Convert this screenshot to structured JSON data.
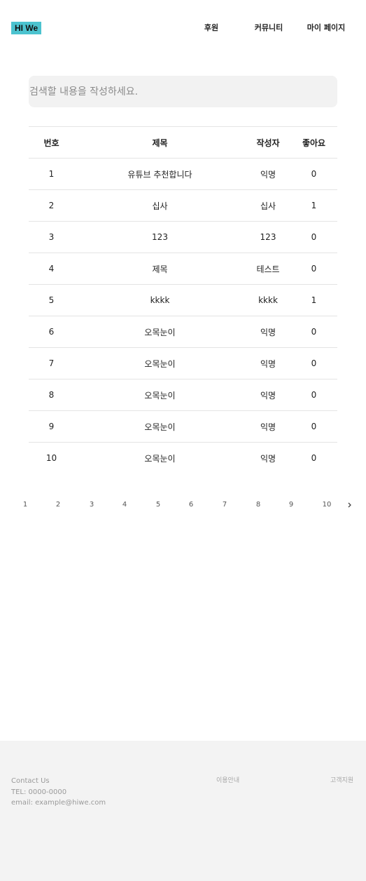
{
  "header": {
    "logo": "HI We",
    "nav": [
      "후원",
      "커뮤니티",
      "마이 페이지"
    ]
  },
  "search": {
    "placeholder": "검색할 내용을 작성하세요.",
    "value": ""
  },
  "table": {
    "headers": [
      "번호",
      "제목",
      "작성자",
      "좋아요"
    ],
    "rows": [
      [
        "1",
        "유튜브 추천합니다",
        "익명",
        "0"
      ],
      [
        "2",
        "십사",
        "십사",
        "1"
      ],
      [
        "3",
        "123",
        "123",
        "0"
      ],
      [
        "4",
        "제목",
        "테스트",
        "0"
      ],
      [
        "5",
        "kkkk",
        "kkkk",
        "1"
      ],
      [
        "6",
        "오목눈이",
        "익명",
        "0"
      ],
      [
        "7",
        "오목눈이",
        "익명",
        "0"
      ],
      [
        "8",
        "오목눈이",
        "익명",
        "0"
      ],
      [
        "9",
        "오목눈이",
        "익명",
        "0"
      ],
      [
        "10",
        "오목눈이",
        "익명",
        "0"
      ]
    ]
  },
  "pagination": {
    "pages": [
      "1",
      "2",
      "3",
      "4",
      "5",
      "6",
      "7",
      "8",
      "9",
      "10"
    ],
    "next_icon": "chevron-right-icon"
  },
  "footer": {
    "contact_title": "Contact Us",
    "tel": "TEL: 0000-0000",
    "email": "email: example@hiwe.com",
    "links": [
      "이용안내",
      "고객지원"
    ]
  },
  "colors": {
    "logo_bg": "#4cc3cf",
    "search_bg": "#f2f2f2",
    "footer_bg": "#f3f3f3",
    "row_border": "#e4e4e4"
  }
}
